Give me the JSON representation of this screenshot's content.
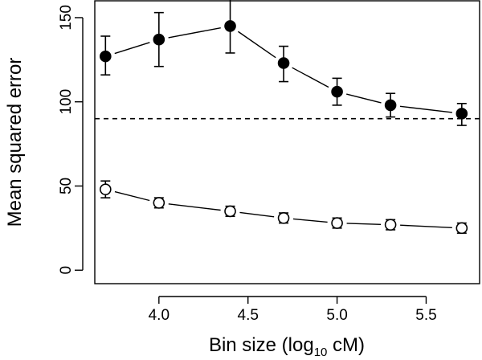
{
  "chart_data": {
    "type": "scatter",
    "xlabel": "Bin size (log",
    "xlabel_sub": "10",
    "xlabel_end": " cM)",
    "ylabel": "Mean squared error",
    "xlim": [
      3.64,
      5.8
    ],
    "ylim": [
      -8,
      160
    ],
    "x_ticks": [
      4.0,
      4.5,
      5.0,
      5.5
    ],
    "x_tick_labels": [
      "4.0",
      "4.5",
      "5.0",
      "5.5"
    ],
    "y_ticks": [
      0,
      50,
      100,
      150
    ],
    "y_tick_labels": [
      "0",
      "50",
      "100",
      "150"
    ],
    "reference_line": {
      "y": 90,
      "style": "dashed"
    },
    "series": [
      {
        "marker": "filled-circle",
        "x": [
          3.7,
          4.0,
          4.4,
          4.7,
          5.0,
          5.3,
          5.7
        ],
        "y": [
          127,
          137,
          145,
          123,
          106,
          98,
          93
        ],
        "err_low": [
          116,
          121,
          129,
          112,
          98,
          91,
          86
        ],
        "err_high": [
          139,
          153,
          161,
          133,
          114,
          105,
          99
        ]
      },
      {
        "marker": "open-circle",
        "x": [
          3.7,
          4.0,
          4.4,
          4.7,
          5.0,
          5.3,
          5.7
        ],
        "y": [
          48,
          40,
          35,
          31,
          28,
          27,
          25
        ],
        "err_low": [
          43,
          37,
          32,
          28,
          25,
          24,
          22
        ],
        "err_high": [
          53,
          43,
          38,
          34,
          31,
          30,
          28
        ]
      }
    ],
    "grid": false,
    "legend": "none"
  }
}
